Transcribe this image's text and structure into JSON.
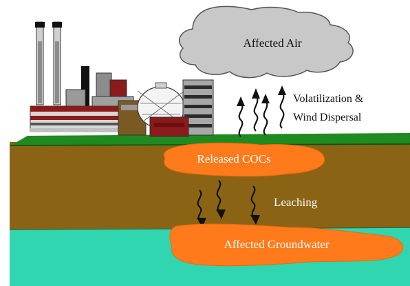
{
  "labels": {
    "affected_air": "Affected Air",
    "volatilization_line1": "Volatilization &",
    "volatilization_line2": "Wind Dispersal",
    "released_cocs": "Released COCs",
    "leaching": "Leaching",
    "affected_groundwater": "Affected Groundwater"
  },
  "colors": {
    "cloud": "#c8c8c8",
    "grass": "#1f8a1f",
    "soil": "#8a6414",
    "groundwater": "#2fd6b0",
    "plume": "#ff7a1a",
    "factory_red": "#8b1a1a",
    "factory_gray": "#9a9a9a"
  },
  "icons": {
    "arrows": "wavy-arrow-icon",
    "factory": "factory-illustration"
  }
}
